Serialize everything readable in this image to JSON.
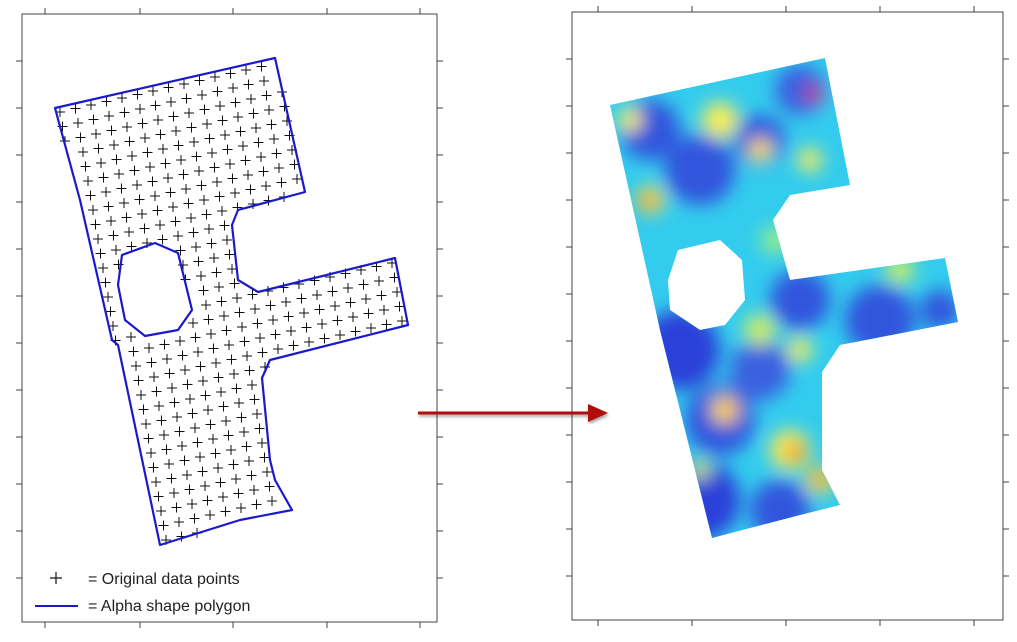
{
  "legend": {
    "points_label": "= Original data points",
    "polygon_label": "= Alpha shape polygon"
  }
}
